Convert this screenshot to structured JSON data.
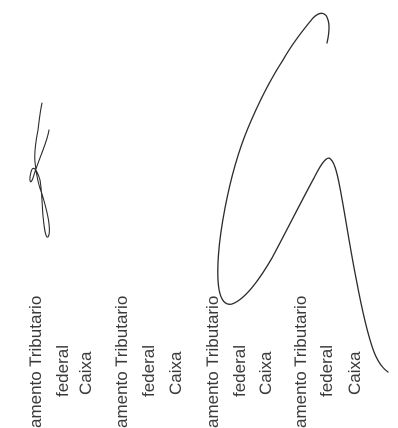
{
  "document": {
    "labels": [
      {
        "line1": "amento Tributario",
        "line2": "federal",
        "line3": "Caixa"
      },
      {
        "line1": "amento Tributario",
        "line2": "federal",
        "line3": "Caixa"
      },
      {
        "line1": "amento Tributario",
        "line2": "federal",
        "line3": "Caixa"
      },
      {
        "line1": "amento Tributario",
        "line2": "federal",
        "line3": "Caixa"
      }
    ],
    "ink_color": "#2b2b2b",
    "text_color": "#3a3a3a"
  }
}
